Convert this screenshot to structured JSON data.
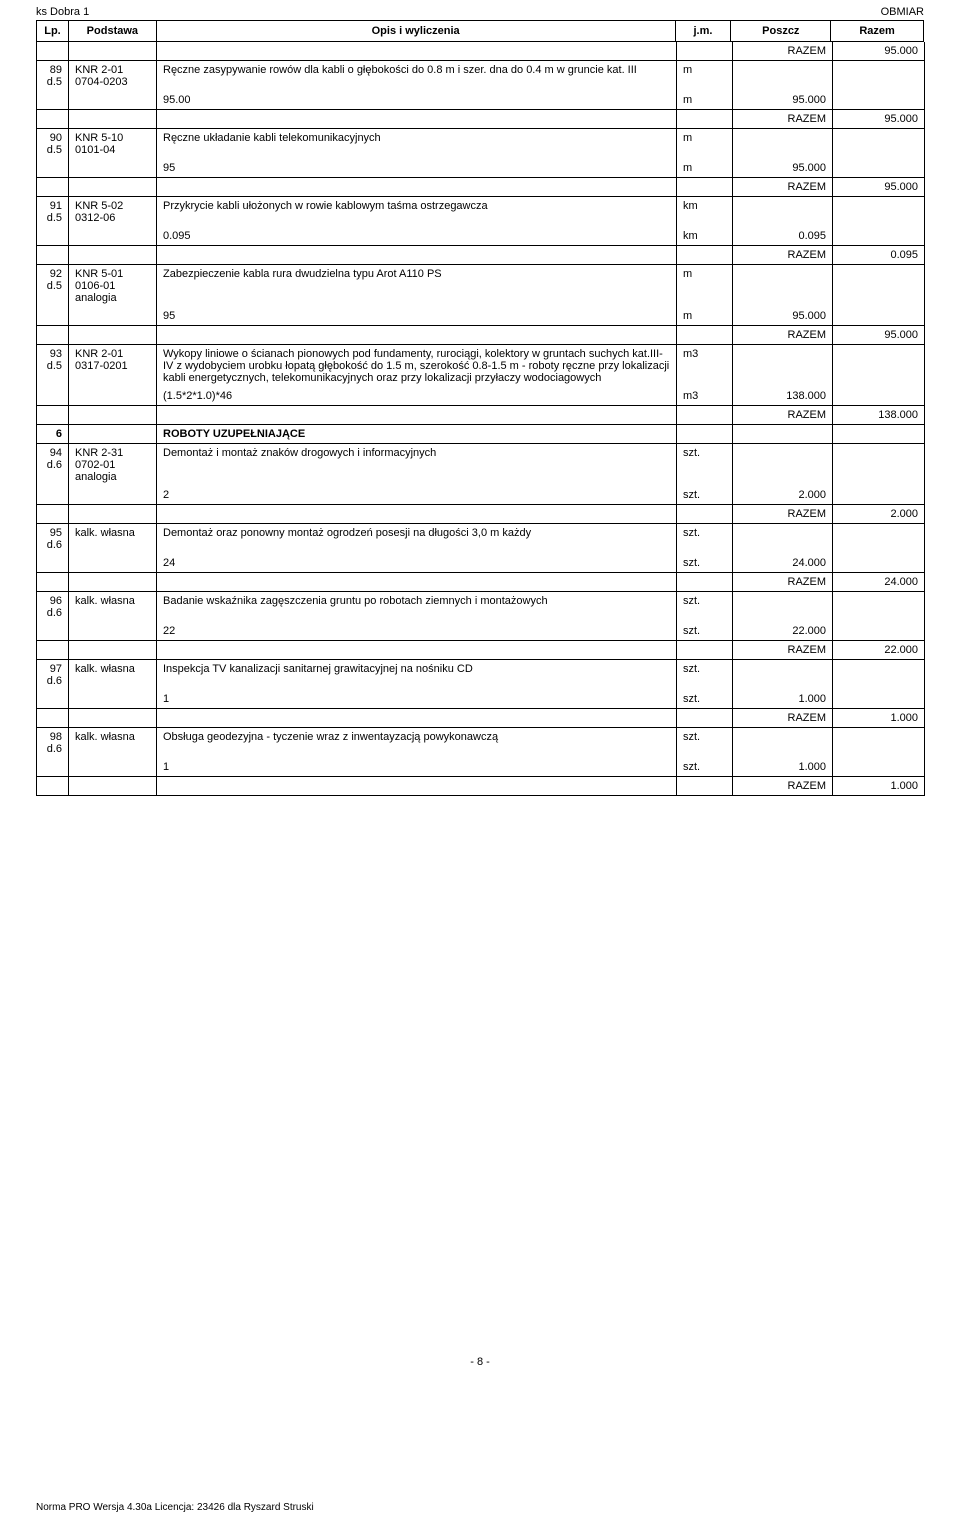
{
  "page": {
    "header_left": "ks Dobra 1",
    "header_right": "OBMIAR",
    "footer_page": "- 8 -",
    "footer_software": "Norma PRO Wersja 4.30a Licencja: 23426 dla Ryszard Struski"
  },
  "columns": {
    "lp": "Lp.",
    "podstawa": "Podstawa",
    "opis": "Opis i wyliczenia",
    "jm": "j.m.",
    "poszcz": "Poszcz",
    "razem": "Razem"
  },
  "razem_label": "RAZEM",
  "rows": [
    {
      "type": "razem",
      "value": "95.000"
    },
    {
      "type": "item_head",
      "lp": "89",
      "d": "d.5",
      "pod": "KNR 2-01 0704-0203",
      "opis": "Ręczne zasypywanie rowów dla kabli o głębokości do 0.8 m i szer. dna do 0.4 m w gruncie kat. III",
      "jm": "m"
    },
    {
      "type": "calc",
      "opis": "95.00",
      "jm": "m",
      "poszcz": "95.000"
    },
    {
      "type": "razem",
      "value": "95.000"
    },
    {
      "type": "item_head",
      "lp": "90",
      "d": "d.5",
      "pod": "KNR 5-10 0101-04",
      "opis": "Ręczne układanie kabli telekomunikacyjnych",
      "jm": "m"
    },
    {
      "type": "calc",
      "opis": "95",
      "jm": "m",
      "poszcz": "95.000"
    },
    {
      "type": "razem",
      "value": "95.000"
    },
    {
      "type": "item_head",
      "lp": "91",
      "d": "d.5",
      "pod": "KNR 5-02 0312-06",
      "opis": "Przykrycie kabli ułożonych w rowie kablowym taśma ostrzegawcza",
      "jm": "km"
    },
    {
      "type": "calc",
      "opis": "0.095",
      "jm": "km",
      "poszcz": "0.095"
    },
    {
      "type": "razem",
      "value": "0.095"
    },
    {
      "type": "item_head",
      "lp": "92",
      "d": "d.5",
      "pod": "KNR 5-01 0106-01 analogia",
      "opis": "Zabezpieczenie kabla rura dwudzielna typu Arot A110 PS",
      "jm": "m"
    },
    {
      "type": "calc",
      "opis": "95",
      "jm": "m",
      "poszcz": "95.000"
    },
    {
      "type": "razem",
      "value": "95.000"
    },
    {
      "type": "item_head",
      "lp": "93",
      "d": "d.5",
      "pod": "KNR 2-01 0317-0201",
      "opis": "Wykopy liniowe o ścianach pionowych pod fundamenty, rurociągi, kolektory w gruntach suchych kat.III-IV z wydobyciem urobku łopatą głębokość do 1.5 m, szerokość 0.8-1.5 m - roboty ręczne przy lokalizacji kabli energetycznych, telekomunikacyjnych oraz przy lokalizacji przyłaczy wodociagowych",
      "jm": "m3"
    },
    {
      "type": "calc",
      "opis": "(1.5*2*1.0)*46",
      "jm": "m3",
      "poszcz": "138.000"
    },
    {
      "type": "razem",
      "value": "138.000"
    },
    {
      "type": "section",
      "lp": "6",
      "opis": "ROBOTY UZUPEŁNIAJĄCE"
    },
    {
      "type": "item_head",
      "lp": "94",
      "d": "d.6",
      "pod": "KNR 2-31 0702-01 analogia",
      "opis": "Demontaż i montaż znaków drogowych i informacyjnych",
      "jm": "szt."
    },
    {
      "type": "calc",
      "opis": "2",
      "jm": "szt.",
      "poszcz": "2.000"
    },
    {
      "type": "razem",
      "value": "2.000"
    },
    {
      "type": "item_head",
      "lp": "95",
      "d": "d.6",
      "pod": "kalk. własna",
      "opis": "Demontaż oraz ponowny montaż ogrodzeń posesji na długości 3,0 m każdy",
      "jm": "szt."
    },
    {
      "type": "calc",
      "opis": "24",
      "jm": "szt.",
      "poszcz": "24.000"
    },
    {
      "type": "razem",
      "value": "24.000"
    },
    {
      "type": "item_head",
      "lp": "96",
      "d": "d.6",
      "pod": "kalk. własna",
      "opis": "Badanie wskaźnika zagęszczenia gruntu po robotach ziemnych i montażowych",
      "jm": "szt."
    },
    {
      "type": "calc",
      "opis": "22",
      "jm": "szt.",
      "poszcz": "22.000"
    },
    {
      "type": "razem",
      "value": "22.000"
    },
    {
      "type": "item_head",
      "lp": "97",
      "d": "d.6",
      "pod": "kalk. własna",
      "opis": "Inspekcja TV kanalizacji sanitarnej grawitacyjnej na nośniku CD",
      "jm": "szt."
    },
    {
      "type": "calc",
      "opis": "1",
      "jm": "szt.",
      "poszcz": "1.000"
    },
    {
      "type": "razem",
      "value": "1.000"
    },
    {
      "type": "item_head",
      "lp": "98",
      "d": "d.6",
      "pod": "kalk. własna",
      "opis": "Obsługa geodezyjna - tyczenie wraz z inwentayzacją powykonawczą",
      "jm": "szt."
    },
    {
      "type": "calc",
      "opis": "1",
      "jm": "szt.",
      "poszcz": "1.000"
    },
    {
      "type": "razem",
      "value": "1.000"
    }
  ]
}
